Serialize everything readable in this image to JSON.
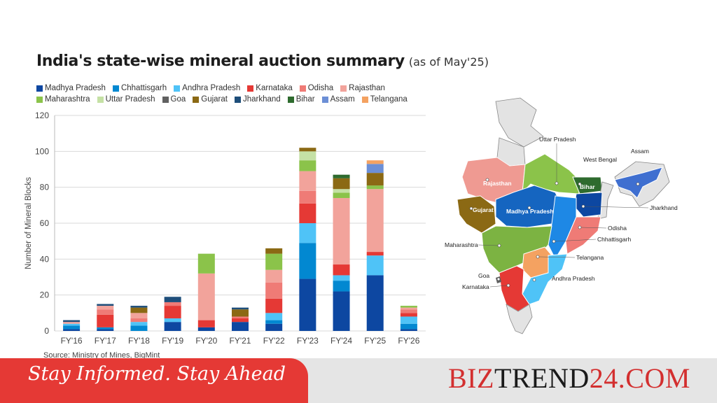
{
  "title": "India's state-wise mineral auction summary",
  "subtitle": "(as of May'25)",
  "source": "Source: Ministry of Mines, BigMint",
  "footer": {
    "tagline": "Stay Informed. Stay Ahead",
    "brand_part1": "BIZ",
    "brand_part2": "TREND",
    "brand_part3": "24.COM"
  },
  "colors": {
    "Madhya Pradesh": "#0d47a1",
    "Chhattisgarh": "#0288d1",
    "Andhra Pradesh": "#4fc3f7",
    "Karnataka": "#e53935",
    "Odisha": "#ef7b76",
    "Rajasthan": "#f2a39b",
    "Maharashtra": "#8bc34a",
    "Uttar Pradesh": "#c5e1a5",
    "Goa": "#616161",
    "Gujarat": "#8b6914",
    "Jharkhand": "#1e4e7a",
    "Bihar": "#2e6b2e",
    "Assam": "#6c8fd6",
    "Telangana": "#f4a261"
  },
  "chart_data": {
    "type": "bar",
    "stacked": true,
    "categories": [
      "FY'16",
      "FY'17",
      "FY'18",
      "FY'19",
      "FY'20",
      "FY'21",
      "FY'22",
      "FY'23",
      "FY'24",
      "FY'25",
      "FY'26"
    ],
    "ylabel": "Number of Mineral Blocks",
    "ylim": [
      0,
      120
    ],
    "yticks": [
      0,
      20,
      40,
      60,
      80,
      100,
      120
    ],
    "grid": true,
    "legend_position": "top-left",
    "series": [
      {
        "name": "Madhya Pradesh",
        "values": [
          1,
          1,
          0,
          5,
          2,
          5,
          4,
          29,
          22,
          31,
          1
        ]
      },
      {
        "name": "Chhattisgarh",
        "values": [
          2,
          1,
          3,
          0,
          0,
          0,
          2,
          20,
          6,
          0,
          3
        ]
      },
      {
        "name": "Andhra Pradesh",
        "values": [
          1,
          0,
          2,
          2,
          0,
          0,
          4,
          11,
          3,
          11,
          4
        ]
      },
      {
        "name": "Karnataka",
        "values": [
          0,
          7,
          0,
          7,
          4,
          2,
          8,
          11,
          6,
          2,
          2
        ]
      },
      {
        "name": "Odisha",
        "values": [
          0,
          3,
          2,
          2,
          0,
          1,
          9,
          7,
          0,
          0,
          2
        ]
      },
      {
        "name": "Rajasthan",
        "values": [
          1,
          2,
          3,
          0,
          26,
          0,
          7,
          11,
          37,
          35,
          1
        ]
      },
      {
        "name": "Maharashtra",
        "values": [
          0,
          0,
          0,
          0,
          11,
          0,
          9,
          6,
          3,
          2,
          1
        ]
      },
      {
        "name": "Uttar Pradesh",
        "values": [
          0,
          0,
          0,
          0,
          0,
          0,
          0,
          5,
          2,
          0,
          0
        ]
      },
      {
        "name": "Goa",
        "values": [
          0,
          0,
          0,
          0,
          0,
          0,
          0,
          0,
          0,
          0,
          0
        ]
      },
      {
        "name": "Gujarat",
        "values": [
          0,
          0,
          3,
          0,
          0,
          4,
          3,
          2,
          6,
          7,
          0
        ]
      },
      {
        "name": "Jharkhand",
        "values": [
          1,
          1,
          1,
          3,
          0,
          1,
          0,
          0,
          0,
          0,
          0
        ]
      },
      {
        "name": "Bihar",
        "values": [
          0,
          0,
          0,
          0,
          0,
          0,
          0,
          0,
          2,
          0,
          0
        ]
      },
      {
        "name": "Assam",
        "values": [
          0,
          0,
          0,
          0,
          0,
          0,
          0,
          0,
          0,
          5,
          0
        ]
      },
      {
        "name": "Telangana",
        "values": [
          0,
          0,
          0,
          0,
          0,
          0,
          0,
          0,
          0,
          2,
          0
        ]
      }
    ]
  },
  "map": {
    "labels": {
      "up": "Uttar Pradesh",
      "wb": "West Bengal",
      "assam": "Assam",
      "raj": "Rajasthan",
      "bihar": "Bihar",
      "mp": "Madhya Pradesh",
      "guj": "Gujarat",
      "jh": "Jharkhand",
      "od": "Odisha",
      "mh": "Maharashtra",
      "cg": "Chhattisgarh",
      "tg": "Telangana",
      "goa": "Goa",
      "ap": "Andhra Pradesh",
      "ka": "Karnataka"
    }
  }
}
